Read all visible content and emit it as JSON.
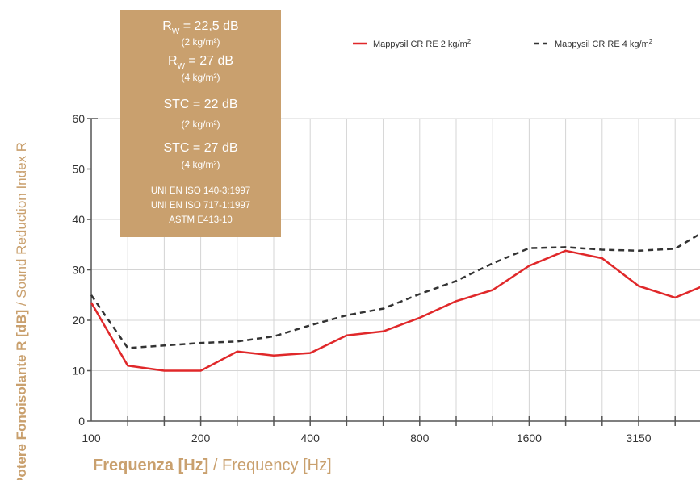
{
  "chart_data": {
    "type": "line",
    "x_ticks": [
      "100",
      "200",
      "400",
      "800",
      "1600",
      "3150"
    ],
    "y_ticks": [
      "0",
      "10",
      "20",
      "30",
      "40",
      "50",
      "60"
    ],
    "ylim": [
      0,
      60
    ],
    "grid": true,
    "legend_position": "top-right",
    "xlabel_bold": "Frequenza [Hz]",
    "xlabel_rest": " / Frequency [Hz]",
    "ylabel_bold": "Potere Fonoisolante R [dB]",
    "ylabel_rest": " / Sound Reduction Index R",
    "frequencies": [
      100,
      125,
      160,
      200,
      250,
      315,
      400,
      500,
      630,
      800,
      1000,
      1250,
      1600,
      2000,
      2500,
      3150,
      4000,
      5000
    ],
    "series": [
      {
        "name": "Mappysil CR RE 2 kg/m²",
        "color": "#e0282a",
        "style": "solid",
        "values": [
          23.5,
          11,
          10,
          10,
          13.8,
          13,
          13.5,
          17,
          17.8,
          20.5,
          23.8,
          26,
          30.8,
          33.8,
          32.3,
          26.8,
          24.5,
          27.5
        ]
      },
      {
        "name": "Mappysil CR RE 4 kg/m²",
        "color": "#333333",
        "style": "dashed",
        "values": [
          25,
          14.5,
          15,
          15.5,
          15.8,
          16.8,
          19,
          21,
          22.3,
          25.2,
          27.8,
          31.3,
          34.3,
          34.5,
          34,
          33.8,
          34.2,
          38.5
        ]
      }
    ]
  },
  "info_box": {
    "color": "#c9a06e",
    "lines": [
      {
        "text": "R",
        "sub": "W",
        "after": " = 22,5 dB",
        "size": "big"
      },
      {
        "text": "(2 kg/m²)",
        "size": "small"
      },
      {
        "text": "R",
        "sub": "W",
        "after": " = 27 dB",
        "size": "big"
      },
      {
        "text": "(4 kg/m²)",
        "size": "small"
      },
      {
        "text": "STC = 22 dB",
        "size": "big"
      },
      {
        "text": "(2 kg/m²)",
        "size": "small"
      },
      {
        "text": "STC = 27 dB",
        "size": "big"
      },
      {
        "text": "(4 kg/m²)",
        "size": "small"
      },
      {
        "text": "UNI EN ISO 140-3:1997",
        "size": "std"
      },
      {
        "text": "UNI EN ISO 717-1:1997",
        "size": "std"
      },
      {
        "text": "ASTM E413-10",
        "size": "std"
      }
    ]
  },
  "legend": [
    {
      "label": "Mappysil CR RE 2 kg/m",
      "sup": "2"
    },
    {
      "label": "Mappysil CR RE 4 kg/m",
      "sup": "2"
    }
  ]
}
